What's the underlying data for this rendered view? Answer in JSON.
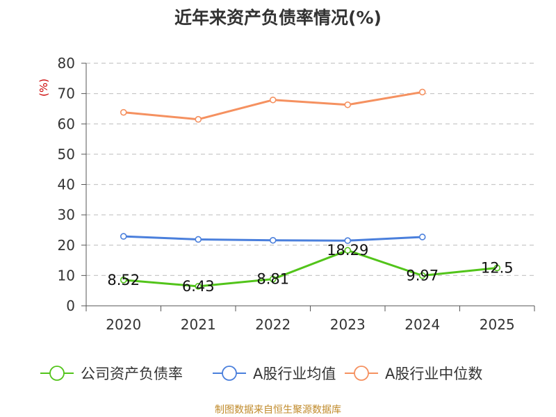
{
  "chart_data": {
    "type": "line",
    "title": "近年来资产负债率情况(%)",
    "ylabel": "(%)",
    "xlabel": "",
    "categories": [
      "2020",
      "2021",
      "2022",
      "2023",
      "2024",
      "2025"
    ],
    "ylim": [
      0,
      80
    ],
    "yticks": [
      0,
      10,
      20,
      30,
      40,
      50,
      60,
      70,
      80
    ],
    "grid": true,
    "legend_position": "bottom",
    "series": [
      {
        "name": "公司资产负债率",
        "color": "#52c41a",
        "values": [
          8.52,
          6.43,
          8.81,
          18.29,
          9.97,
          12.5
        ],
        "labels": [
          "8.52",
          "6.43",
          "8.81",
          "18.29",
          "9.97",
          "12.5"
        ]
      },
      {
        "name": "A股行业均值",
        "color": "#4a7fdc",
        "values": [
          22.9,
          21.9,
          21.6,
          21.5,
          22.7,
          null
        ]
      },
      {
        "name": "A股行业中位数",
        "color": "#f59160",
        "values": [
          63.8,
          61.5,
          67.9,
          66.3,
          70.5,
          null
        ]
      }
    ]
  },
  "source": "制图数据来自恒生聚源数据库"
}
